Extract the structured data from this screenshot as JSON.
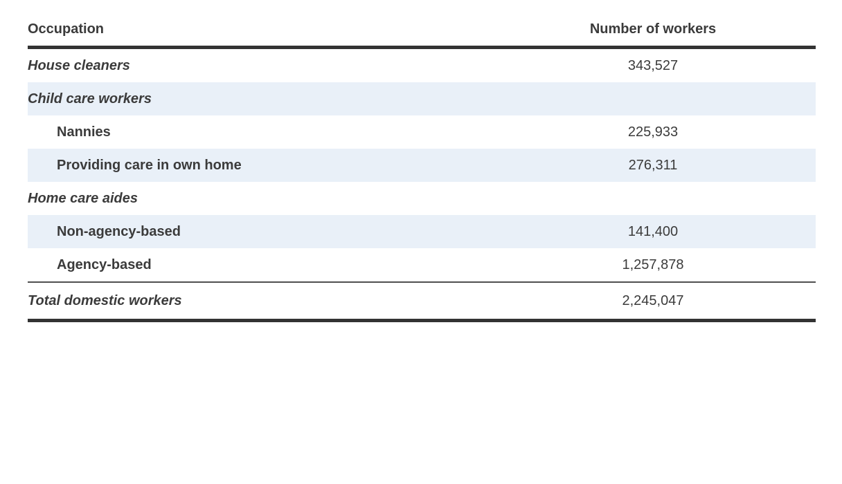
{
  "table": {
    "columns": {
      "occupation_header": "Occupation",
      "number_header": "Number of workers"
    },
    "rows": [
      {
        "label": "House cleaners",
        "value": "343,527",
        "style": "category",
        "shaded": false
      },
      {
        "label": "Child care workers",
        "value": "",
        "style": "category",
        "shaded": true
      },
      {
        "label": "Nannies",
        "value": "225,933",
        "style": "sub",
        "shaded": false
      },
      {
        "label": "Providing care in own home",
        "value": "276,311",
        "style": "sub",
        "shaded": true
      },
      {
        "label": "Home care aides",
        "value": "",
        "style": "category",
        "shaded": false
      },
      {
        "label": "Non-agency-based",
        "value": "141,400",
        "style": "sub",
        "shaded": true
      },
      {
        "label": "Agency-based",
        "value": "1,257,878",
        "style": "sub",
        "shaded": false
      }
    ],
    "total_row": {
      "label": "Total domestic workers",
      "value": "2,245,047"
    }
  },
  "colors": {
    "stripe": "#e9f0f8",
    "text": "#3b3b3b",
    "thick_rule": "#333333",
    "thin_rule": "#4f4f4f"
  },
  "chart_data": {
    "type": "table",
    "title": "",
    "columns": [
      "Occupation",
      "Number of workers"
    ],
    "rows": [
      [
        "House cleaners",
        343527
      ],
      [
        "Child care workers",
        null
      ],
      [
        "Nannies",
        225933
      ],
      [
        "Providing care in own home",
        276311
      ],
      [
        "Home care aides",
        null
      ],
      [
        "Non-agency-based",
        141400
      ],
      [
        "Agency-based",
        1257878
      ],
      [
        "Total domestic workers",
        2245047
      ]
    ],
    "notes": "Nannies and Providing care in own home are subcategories of Child care workers; Non-agency-based and Agency-based are subcategories of Home care aides; striped rows alternate white and light blue"
  }
}
